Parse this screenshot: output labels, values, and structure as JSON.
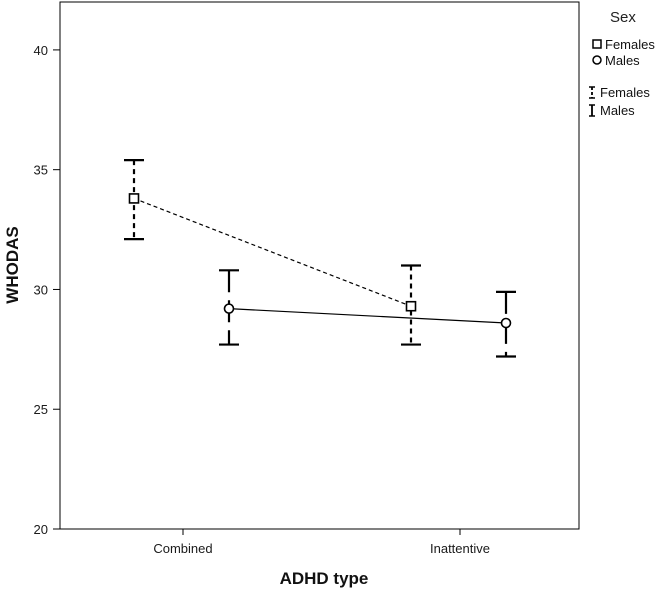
{
  "chart_data": {
    "type": "line",
    "xlabel": "ADHD type",
    "ylabel": "WHODAS",
    "categories": [
      "Combined",
      "Inattentive"
    ],
    "ylim": [
      20,
      42
    ],
    "yticks": [
      20,
      25,
      30,
      35,
      40
    ],
    "series": [
      {
        "name": "Females",
        "marker": "square",
        "line": "dashed",
        "values": [
          33.8,
          29.3
        ],
        "ci_low": [
          32.1,
          27.7
        ],
        "ci_high": [
          35.4,
          31.0
        ]
      },
      {
        "name": "Males",
        "marker": "circle",
        "line": "solid",
        "values": [
          29.2,
          28.6
        ],
        "ci_low": [
          27.7,
          27.2
        ],
        "ci_high": [
          30.8,
          29.9
        ]
      }
    ],
    "legend": {
      "title": "Sex",
      "placement": "top-right",
      "marker_entries": [
        "Females",
        "Males"
      ],
      "errorbar_entries": [
        "Females",
        "Males"
      ]
    },
    "grid": false
  }
}
